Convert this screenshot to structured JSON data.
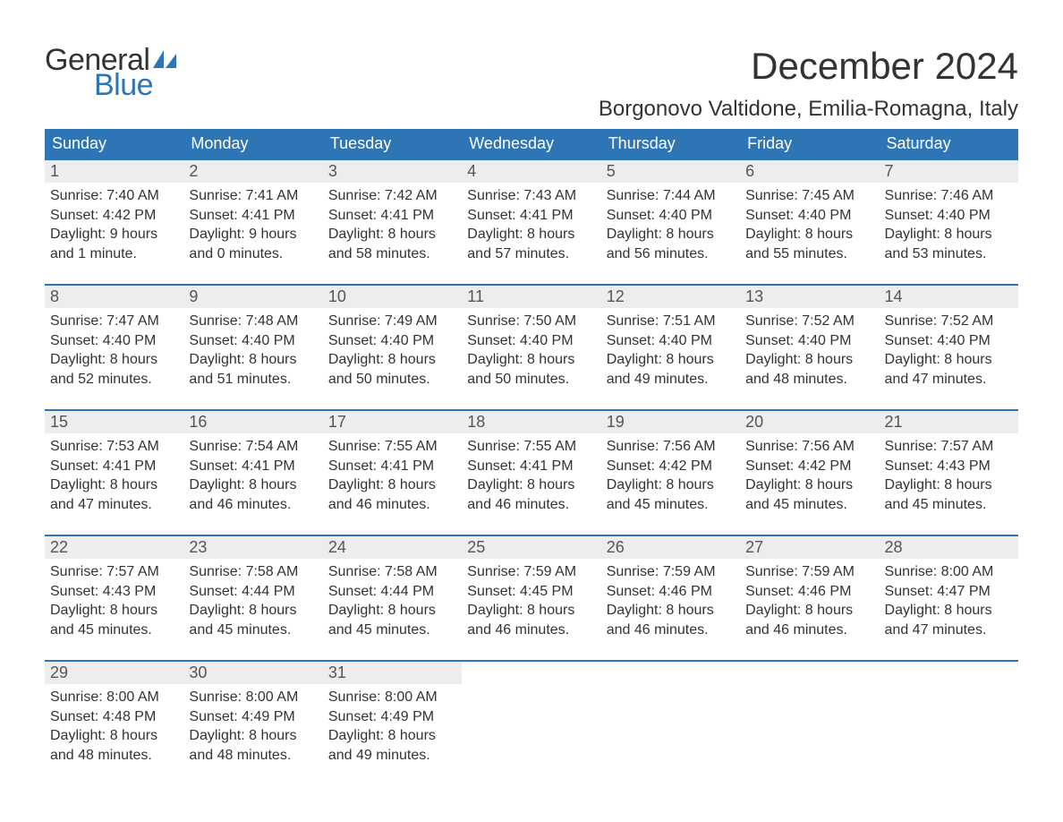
{
  "brand": {
    "general": "General",
    "blue": "Blue"
  },
  "title": "December 2024",
  "location": "Borgonovo Valtidone, Emilia-Romagna, Italy",
  "colors": {
    "header_bg": "#2e75b6",
    "header_text": "#ffffff",
    "week_border": "#2e75b6",
    "daynum_bg": "#ededed",
    "daynum_text": "#555555",
    "body_text": "#333333",
    "logo_blue": "#2e75b6",
    "page_bg": "#ffffff"
  },
  "typography": {
    "title_fontsize": 42,
    "location_fontsize": 24,
    "weekday_fontsize": 18,
    "daynum_fontsize": 18,
    "cell_fontsize": 16,
    "logo_fontsize": 34
  },
  "weekdays": [
    "Sunday",
    "Monday",
    "Tuesday",
    "Wednesday",
    "Thursday",
    "Friday",
    "Saturday"
  ],
  "weeks": [
    [
      {
        "num": "1",
        "sunrise": "Sunrise: 7:40 AM",
        "sunset": "Sunset: 4:42 PM",
        "day1": "Daylight: 9 hours",
        "day2": "and 1 minute."
      },
      {
        "num": "2",
        "sunrise": "Sunrise: 7:41 AM",
        "sunset": "Sunset: 4:41 PM",
        "day1": "Daylight: 9 hours",
        "day2": "and 0 minutes."
      },
      {
        "num": "3",
        "sunrise": "Sunrise: 7:42 AM",
        "sunset": "Sunset: 4:41 PM",
        "day1": "Daylight: 8 hours",
        "day2": "and 58 minutes."
      },
      {
        "num": "4",
        "sunrise": "Sunrise: 7:43 AM",
        "sunset": "Sunset: 4:41 PM",
        "day1": "Daylight: 8 hours",
        "day2": "and 57 minutes."
      },
      {
        "num": "5",
        "sunrise": "Sunrise: 7:44 AM",
        "sunset": "Sunset: 4:40 PM",
        "day1": "Daylight: 8 hours",
        "day2": "and 56 minutes."
      },
      {
        "num": "6",
        "sunrise": "Sunrise: 7:45 AM",
        "sunset": "Sunset: 4:40 PM",
        "day1": "Daylight: 8 hours",
        "day2": "and 55 minutes."
      },
      {
        "num": "7",
        "sunrise": "Sunrise: 7:46 AM",
        "sunset": "Sunset: 4:40 PM",
        "day1": "Daylight: 8 hours",
        "day2": "and 53 minutes."
      }
    ],
    [
      {
        "num": "8",
        "sunrise": "Sunrise: 7:47 AM",
        "sunset": "Sunset: 4:40 PM",
        "day1": "Daylight: 8 hours",
        "day2": "and 52 minutes."
      },
      {
        "num": "9",
        "sunrise": "Sunrise: 7:48 AM",
        "sunset": "Sunset: 4:40 PM",
        "day1": "Daylight: 8 hours",
        "day2": "and 51 minutes."
      },
      {
        "num": "10",
        "sunrise": "Sunrise: 7:49 AM",
        "sunset": "Sunset: 4:40 PM",
        "day1": "Daylight: 8 hours",
        "day2": "and 50 minutes."
      },
      {
        "num": "11",
        "sunrise": "Sunrise: 7:50 AM",
        "sunset": "Sunset: 4:40 PM",
        "day1": "Daylight: 8 hours",
        "day2": "and 50 minutes."
      },
      {
        "num": "12",
        "sunrise": "Sunrise: 7:51 AM",
        "sunset": "Sunset: 4:40 PM",
        "day1": "Daylight: 8 hours",
        "day2": "and 49 minutes."
      },
      {
        "num": "13",
        "sunrise": "Sunrise: 7:52 AM",
        "sunset": "Sunset: 4:40 PM",
        "day1": "Daylight: 8 hours",
        "day2": "and 48 minutes."
      },
      {
        "num": "14",
        "sunrise": "Sunrise: 7:52 AM",
        "sunset": "Sunset: 4:40 PM",
        "day1": "Daylight: 8 hours",
        "day2": "and 47 minutes."
      }
    ],
    [
      {
        "num": "15",
        "sunrise": "Sunrise: 7:53 AM",
        "sunset": "Sunset: 4:41 PM",
        "day1": "Daylight: 8 hours",
        "day2": "and 47 minutes."
      },
      {
        "num": "16",
        "sunrise": "Sunrise: 7:54 AM",
        "sunset": "Sunset: 4:41 PM",
        "day1": "Daylight: 8 hours",
        "day2": "and 46 minutes."
      },
      {
        "num": "17",
        "sunrise": "Sunrise: 7:55 AM",
        "sunset": "Sunset: 4:41 PM",
        "day1": "Daylight: 8 hours",
        "day2": "and 46 minutes."
      },
      {
        "num": "18",
        "sunrise": "Sunrise: 7:55 AM",
        "sunset": "Sunset: 4:41 PM",
        "day1": "Daylight: 8 hours",
        "day2": "and 46 minutes."
      },
      {
        "num": "19",
        "sunrise": "Sunrise: 7:56 AM",
        "sunset": "Sunset: 4:42 PM",
        "day1": "Daylight: 8 hours",
        "day2": "and 45 minutes."
      },
      {
        "num": "20",
        "sunrise": "Sunrise: 7:56 AM",
        "sunset": "Sunset: 4:42 PM",
        "day1": "Daylight: 8 hours",
        "day2": "and 45 minutes."
      },
      {
        "num": "21",
        "sunrise": "Sunrise: 7:57 AM",
        "sunset": "Sunset: 4:43 PM",
        "day1": "Daylight: 8 hours",
        "day2": "and 45 minutes."
      }
    ],
    [
      {
        "num": "22",
        "sunrise": "Sunrise: 7:57 AM",
        "sunset": "Sunset: 4:43 PM",
        "day1": "Daylight: 8 hours",
        "day2": "and 45 minutes."
      },
      {
        "num": "23",
        "sunrise": "Sunrise: 7:58 AM",
        "sunset": "Sunset: 4:44 PM",
        "day1": "Daylight: 8 hours",
        "day2": "and 45 minutes."
      },
      {
        "num": "24",
        "sunrise": "Sunrise: 7:58 AM",
        "sunset": "Sunset: 4:44 PM",
        "day1": "Daylight: 8 hours",
        "day2": "and 45 minutes."
      },
      {
        "num": "25",
        "sunrise": "Sunrise: 7:59 AM",
        "sunset": "Sunset: 4:45 PM",
        "day1": "Daylight: 8 hours",
        "day2": "and 46 minutes."
      },
      {
        "num": "26",
        "sunrise": "Sunrise: 7:59 AM",
        "sunset": "Sunset: 4:46 PM",
        "day1": "Daylight: 8 hours",
        "day2": "and 46 minutes."
      },
      {
        "num": "27",
        "sunrise": "Sunrise: 7:59 AM",
        "sunset": "Sunset: 4:46 PM",
        "day1": "Daylight: 8 hours",
        "day2": "and 46 minutes."
      },
      {
        "num": "28",
        "sunrise": "Sunrise: 8:00 AM",
        "sunset": "Sunset: 4:47 PM",
        "day1": "Daylight: 8 hours",
        "day2": "and 47 minutes."
      }
    ],
    [
      {
        "num": "29",
        "sunrise": "Sunrise: 8:00 AM",
        "sunset": "Sunset: 4:48 PM",
        "day1": "Daylight: 8 hours",
        "day2": "and 48 minutes."
      },
      {
        "num": "30",
        "sunrise": "Sunrise: 8:00 AM",
        "sunset": "Sunset: 4:49 PM",
        "day1": "Daylight: 8 hours",
        "day2": "and 48 minutes."
      },
      {
        "num": "31",
        "sunrise": "Sunrise: 8:00 AM",
        "sunset": "Sunset: 4:49 PM",
        "day1": "Daylight: 8 hours",
        "day2": "and 49 minutes."
      },
      {
        "empty": true
      },
      {
        "empty": true
      },
      {
        "empty": true
      },
      {
        "empty": true
      }
    ]
  ]
}
